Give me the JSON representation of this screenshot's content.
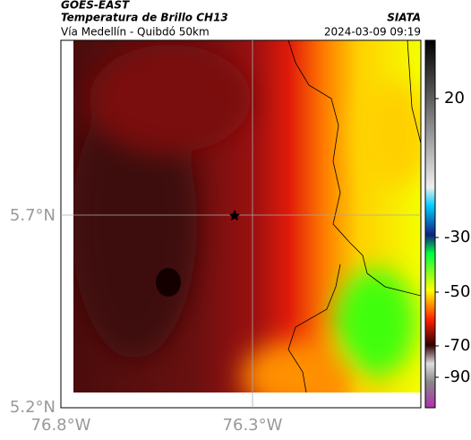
{
  "header": {
    "title": "GOES-EAST",
    "subtitle": "Temperatura de Brillo CH13",
    "source": "SIATA",
    "region": "Vía Medellín - Quibdó 50km",
    "timestamp": "2024-03-09 09:19"
  },
  "map": {
    "lat_labels": [
      "5.7°N",
      "5.2°N"
    ],
    "lon_labels": [
      "76.8°W",
      "76.3°W"
    ]
  },
  "colorbar": {
    "labels": [
      20,
      -30,
      -50,
      -70,
      -90
    ]
  }
}
